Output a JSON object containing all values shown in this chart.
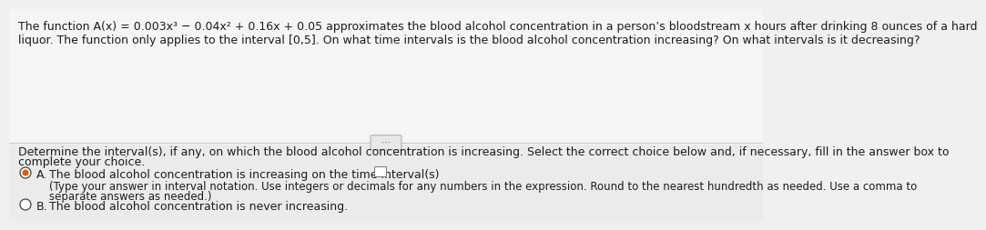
{
  "bg_color": "#f0f0f0",
  "top_section_color": "#f5f5f5",
  "bottom_section_color": "#ebebeb",
  "divider_color": "#cccccc",
  "top_text_line1": "The function A(x) = 0.003x³ − 0.04x² + 0.16x + 0.05 approximates the blood alcohol concentration in a person’s bloodstream x hours after drinking 8 ounces of a hard",
  "top_text_line2": "liquor. The function only applies to the interval [0,5]. On what time intervals is the blood alcohol concentration increasing? On what intervals is it decreasing?",
  "ellipsis_text": "⋯",
  "instruction_line1": "Determine the interval(s), if any, on which the blood alcohol concentration is increasing. Select the correct choice below and, if necessary, fill in the answer box to",
  "instruction_line2": "complete your choice.",
  "choice_a_main": "The blood alcohol concentration is increasing on the time interval(s)",
  "choice_a_sub_line1": "(Type your answer in interval notation. Use integers or decimals for any numbers in the expression. Round to the nearest hundredth as needed. Use a comma to",
  "choice_a_sub_line2": "separate answers as needed.)",
  "choice_b_main": "The blood alcohol concentration is never increasing.",
  "font_size": 9.0,
  "font_size_small": 8.5,
  "text_color": "#1c1c1c",
  "radio_selected_color": "#e05800",
  "answer_box_color": "#cccccc"
}
